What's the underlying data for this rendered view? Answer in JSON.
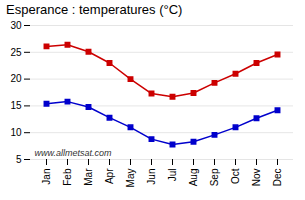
{
  "chart_data": {
    "type": "line",
    "title": "Esperance : temperatures (°C)",
    "categories": [
      "Jan",
      "Feb",
      "Mar",
      "Apr",
      "May",
      "Jun",
      "Jul",
      "Aug",
      "Sep",
      "Oct",
      "Nov",
      "Dec"
    ],
    "series": [
      {
        "color": "#cc0000",
        "marker": "square",
        "values": [
          26.1,
          26.4,
          25.1,
          23.0,
          20.0,
          17.3,
          16.7,
          17.4,
          19.3,
          21.0,
          23.0,
          24.6
        ]
      },
      {
        "color": "#0000cc",
        "marker": "square",
        "values": [
          15.4,
          15.8,
          14.8,
          12.8,
          11.0,
          8.8,
          7.8,
          8.3,
          9.6,
          11.0,
          12.7,
          14.2
        ]
      }
    ],
    "ylim": [
      5,
      30
    ],
    "yticks": [
      5,
      10,
      15,
      20,
      25,
      30
    ],
    "grid": true,
    "annotations": [
      {
        "text": "www.allmetsat.com"
      }
    ]
  }
}
